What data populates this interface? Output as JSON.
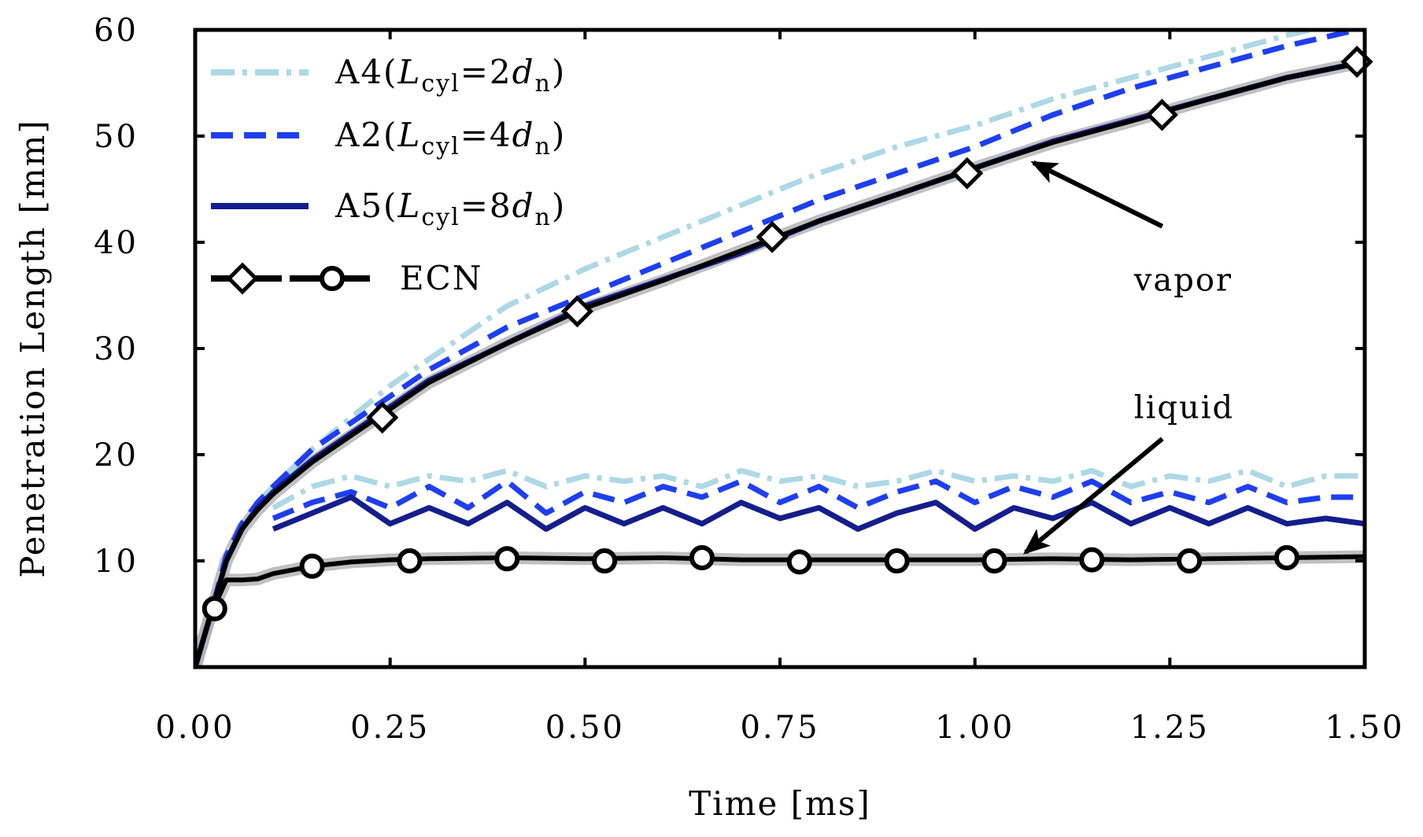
{
  "chart_data": {
    "type": "line",
    "title": "",
    "xlabel": "Time [ms]",
    "ylabel": "Penetration Length [mm]",
    "xlim": [
      0,
      1.5
    ],
    "ylim": [
      0,
      60
    ],
    "xticks": [
      "0.00",
      "0.25",
      "0.50",
      "0.75",
      "1.00",
      "1.25",
      "1.50"
    ],
    "xtick_values": [
      0,
      0.25,
      0.5,
      0.75,
      1.0,
      1.25,
      1.5
    ],
    "yticks": [
      "10",
      "20",
      "30",
      "40",
      "50",
      "60"
    ],
    "ytick_values": [
      10,
      20,
      30,
      40,
      50,
      60
    ],
    "grid": false,
    "legend_position": "top-left",
    "legend": [
      {
        "id": "A4",
        "prefix": "A4(",
        "var": "L",
        "sub": "cyl",
        "eq": "=2",
        "d": "d",
        "dsub": "n",
        "suffix": ")",
        "color": "#add8e6",
        "style": "dashdot"
      },
      {
        "id": "A2",
        "prefix": "A2(",
        "var": "L",
        "sub": "cyl",
        "eq": "=4",
        "d": "d",
        "dsub": "n",
        "suffix": ")",
        "color": "#1e3ff0",
        "style": "dashed"
      },
      {
        "id": "A5",
        "prefix": "A5(",
        "var": "L",
        "sub": "cyl",
        "eq": "=8",
        "d": "d",
        "dsub": "n",
        "suffix": ")",
        "color": "#141e8c",
        "style": "solid"
      },
      {
        "id": "ECN",
        "label": "ECN",
        "color": "#000000",
        "style": "markers"
      }
    ],
    "series": [
      {
        "name": "A4 vapor",
        "color": "#add8e6",
        "style": "dashdot",
        "x": [
          0,
          0.02,
          0.04,
          0.06,
          0.08,
          0.1,
          0.15,
          0.2,
          0.25,
          0.3,
          0.4,
          0.5,
          0.6,
          0.7,
          0.8,
          0.9,
          1.0,
          1.1,
          1.2,
          1.3,
          1.4,
          1.43
        ],
        "y": [
          0,
          5,
          10.5,
          13.5,
          15.5,
          17,
          20.5,
          23.5,
          26.5,
          29,
          34,
          37.5,
          40.5,
          43.5,
          46.5,
          49,
          51,
          53.5,
          55.5,
          57.5,
          59.5,
          60
        ]
      },
      {
        "name": "A2 vapor",
        "color": "#1e3ff0",
        "style": "dashed",
        "x": [
          0,
          0.02,
          0.04,
          0.06,
          0.08,
          0.1,
          0.15,
          0.2,
          0.25,
          0.3,
          0.4,
          0.5,
          0.6,
          0.7,
          0.8,
          0.9,
          1.0,
          1.1,
          1.2,
          1.3,
          1.4,
          1.49
        ],
        "y": [
          0,
          5,
          10.5,
          13.5,
          15.5,
          17,
          20.5,
          23,
          25.5,
          28,
          32,
          35,
          38,
          41,
          44,
          46.5,
          49,
          52,
          54.5,
          56.5,
          58.5,
          60
        ]
      },
      {
        "name": "A5 vapor",
        "color": "#141e8c",
        "style": "solid",
        "x": [
          0,
          0.02,
          0.04,
          0.06,
          0.08,
          0.1,
          0.15,
          0.2,
          0.25,
          0.3,
          0.4,
          0.5,
          0.6,
          0.7,
          0.8,
          0.9,
          1.0,
          1.1,
          1.2,
          1.3,
          1.4,
          1.5
        ],
        "y": [
          0,
          5,
          10,
          13,
          15,
          16.5,
          19.5,
          22,
          24.5,
          27,
          30.5,
          34,
          36.5,
          39,
          42,
          44.5,
          47,
          49.5,
          51.5,
          53.5,
          55.5,
          57
        ]
      },
      {
        "name": "ECN vapor",
        "color": "#000000",
        "style": "solid",
        "marker": "diamond",
        "x": [
          0,
          0.02,
          0.04,
          0.06,
          0.08,
          0.1,
          0.15,
          0.2,
          0.25,
          0.3,
          0.4,
          0.5,
          0.6,
          0.7,
          0.8,
          0.9,
          1.0,
          1.1,
          1.2,
          1.3,
          1.4,
          1.5
        ],
        "y": [
          0,
          5,
          10,
          13,
          14.8,
          16.3,
          19.3,
          21.8,
          24.3,
          26.8,
          30.5,
          33.8,
          36.4,
          39.2,
          42,
          44.5,
          47,
          49.4,
          51.4,
          53.5,
          55.5,
          57
        ],
        "marker_x": [
          0.24,
          0.49,
          0.74,
          0.99,
          1.24,
          1.49
        ],
        "marker_y": [
          23.5,
          33.5,
          40.5,
          46.5,
          52,
          57
        ]
      },
      {
        "name": "A4 liquid",
        "color": "#add8e6",
        "style": "dashdot",
        "x": [
          0.1,
          0.15,
          0.2,
          0.25,
          0.3,
          0.35,
          0.4,
          0.45,
          0.5,
          0.55,
          0.6,
          0.65,
          0.7,
          0.75,
          0.8,
          0.85,
          0.9,
          0.95,
          1.0,
          1.05,
          1.1,
          1.15,
          1.2,
          1.25,
          1.3,
          1.35,
          1.4,
          1.45,
          1.5
        ],
        "y": [
          15,
          17,
          18,
          17,
          18,
          17.5,
          18.5,
          17,
          18,
          17.5,
          18,
          17,
          18.5,
          17.5,
          18,
          17,
          17.5,
          18.5,
          17.5,
          18,
          17.5,
          18.5,
          17,
          18,
          17.5,
          18.5,
          17,
          18,
          18
        ]
      },
      {
        "name": "A2 liquid",
        "color": "#1e3ff0",
        "style": "dashed",
        "x": [
          0.1,
          0.15,
          0.2,
          0.25,
          0.3,
          0.35,
          0.4,
          0.45,
          0.5,
          0.55,
          0.6,
          0.65,
          0.7,
          0.75,
          0.8,
          0.85,
          0.9,
          0.95,
          1.0,
          1.05,
          1.1,
          1.15,
          1.2,
          1.25,
          1.3,
          1.35,
          1.4,
          1.45,
          1.5
        ],
        "y": [
          14,
          15.5,
          16.5,
          15,
          17,
          15,
          17.5,
          14.5,
          16.5,
          15.5,
          17,
          16,
          17.5,
          15.5,
          17,
          15,
          16.5,
          17.5,
          15.5,
          17,
          16,
          17.5,
          15.5,
          16.5,
          15.5,
          17,
          15.5,
          16,
          16
        ]
      },
      {
        "name": "A5 liquid",
        "color": "#141e8c",
        "style": "solid",
        "x": [
          0.1,
          0.15,
          0.2,
          0.25,
          0.3,
          0.35,
          0.4,
          0.45,
          0.5,
          0.55,
          0.6,
          0.65,
          0.7,
          0.75,
          0.8,
          0.85,
          0.9,
          0.95,
          1.0,
          1.05,
          1.1,
          1.15,
          1.2,
          1.25,
          1.3,
          1.35,
          1.4,
          1.45,
          1.5
        ],
        "y": [
          13,
          14.5,
          16,
          13.5,
          15,
          13.5,
          15.5,
          13,
          15,
          13.5,
          15,
          13.5,
          15.5,
          14,
          15,
          13,
          14.5,
          15.5,
          13,
          15,
          14,
          15.5,
          13.5,
          15,
          13.5,
          15,
          13.5,
          14,
          13.5
        ]
      },
      {
        "name": "ECN liquid",
        "color": "#000000",
        "style": "solid",
        "marker": "circle",
        "x": [
          0,
          0.02,
          0.04,
          0.06,
          0.08,
          0.1,
          0.15,
          0.2,
          0.25,
          0.3,
          0.4,
          0.5,
          0.6,
          0.7,
          0.8,
          0.9,
          1.0,
          1.1,
          1.2,
          1.3,
          1.4,
          1.5
        ],
        "y": [
          0,
          5,
          8.2,
          8.2,
          8.3,
          8.8,
          9.5,
          9.9,
          10.1,
          10.2,
          10.3,
          10.2,
          10.3,
          10.1,
          10.1,
          10.1,
          10.1,
          10.2,
          10.1,
          10.2,
          10.3,
          10.4
        ],
        "marker_x": [
          0.025,
          0.15,
          0.275,
          0.4,
          0.525,
          0.65,
          0.775,
          0.9,
          1.025,
          1.15,
          1.275,
          1.4
        ],
        "marker_y": [
          5.5,
          9.5,
          10,
          10.2,
          10,
          10.3,
          9.9,
          10,
          10,
          10.1,
          10,
          10.3
        ]
      }
    ],
    "annotations": [
      {
        "text": "vapor",
        "x": 1.2,
        "y": 36.5,
        "arrow_from": [
          1.2,
          41.5
        ],
        "arrow_to": [
          1.075,
          47.5
        ]
      },
      {
        "text": "liquid",
        "x": 1.2,
        "y": 24.5,
        "arrow_from": [
          1.2,
          21.5
        ],
        "arrow_to": [
          1.065,
          10.8
        ]
      }
    ]
  }
}
